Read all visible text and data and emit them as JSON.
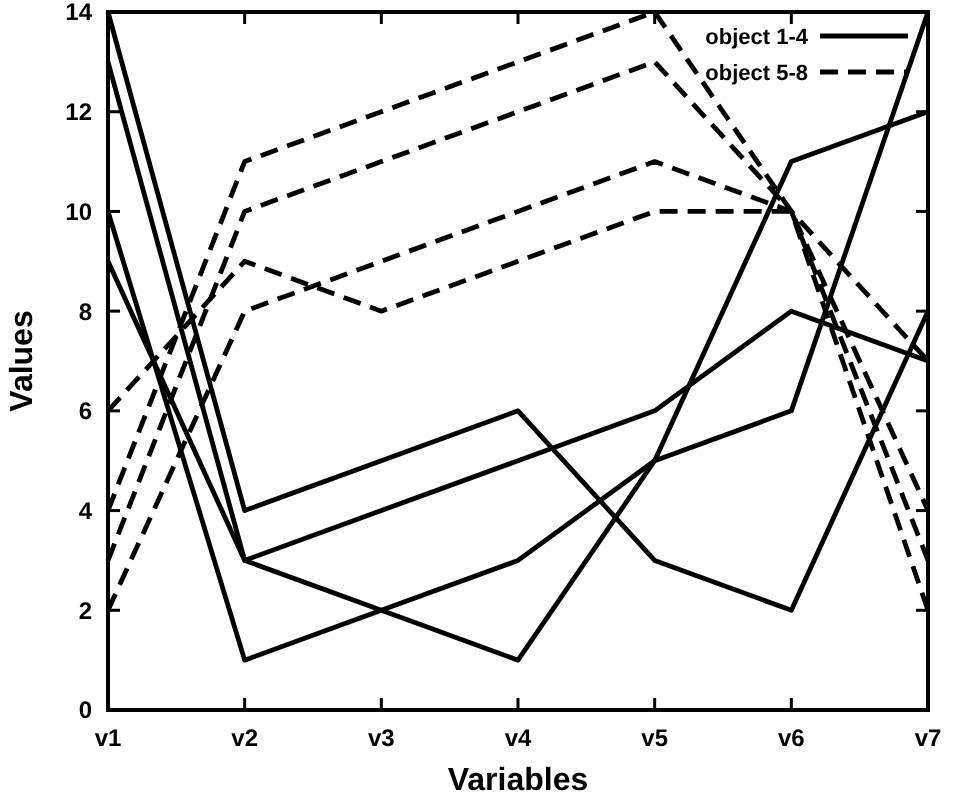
{
  "chart_data": {
    "type": "line",
    "xlabel": "Variables",
    "ylabel": "Values",
    "categories": [
      "v1",
      "v2",
      "v3",
      "v4",
      "v5",
      "v6",
      "v7"
    ],
    "ylim": [
      0,
      14
    ],
    "yticks": [
      0,
      2,
      4,
      6,
      8,
      10,
      12,
      14
    ],
    "grid": false,
    "legend": "top right",
    "series": [
      {
        "name": "object 1-4",
        "color": "#000000",
        "line_style": "solid",
        "values": [
          14,
          4,
          5,
          6,
          3,
          2,
          8
        ]
      },
      {
        "color": "#000000",
        "line_style": "solid",
        "values": [
          13,
          3,
          4,
          5,
          6,
          8,
          7
        ]
      },
      {
        "color": "#000000",
        "line_style": "solid",
        "values": [
          10,
          1,
          2,
          3,
          5,
          6,
          14
        ]
      },
      {
        "color": "#000000",
        "line_style": "solid",
        "values": [
          9,
          3,
          2,
          1,
          5,
          11,
          12
        ]
      },
      {
        "name": "object 5-8",
        "color": "#000000",
        "line_style": "dashed",
        "values": [
          4,
          11,
          12,
          13,
          14,
          10,
          2
        ]
      },
      {
        "color": "#000000",
        "line_style": "dashed",
        "values": [
          3,
          10,
          11,
          12,
          13,
          10,
          3
        ]
      },
      {
        "color": "#000000",
        "line_style": "dashed",
        "values": [
          6,
          9,
          8,
          9,
          10,
          10,
          4
        ]
      },
      {
        "color": "#000000",
        "line_style": "dashed",
        "values": [
          2,
          8,
          9,
          10,
          11,
          10,
          7
        ]
      }
    ]
  }
}
